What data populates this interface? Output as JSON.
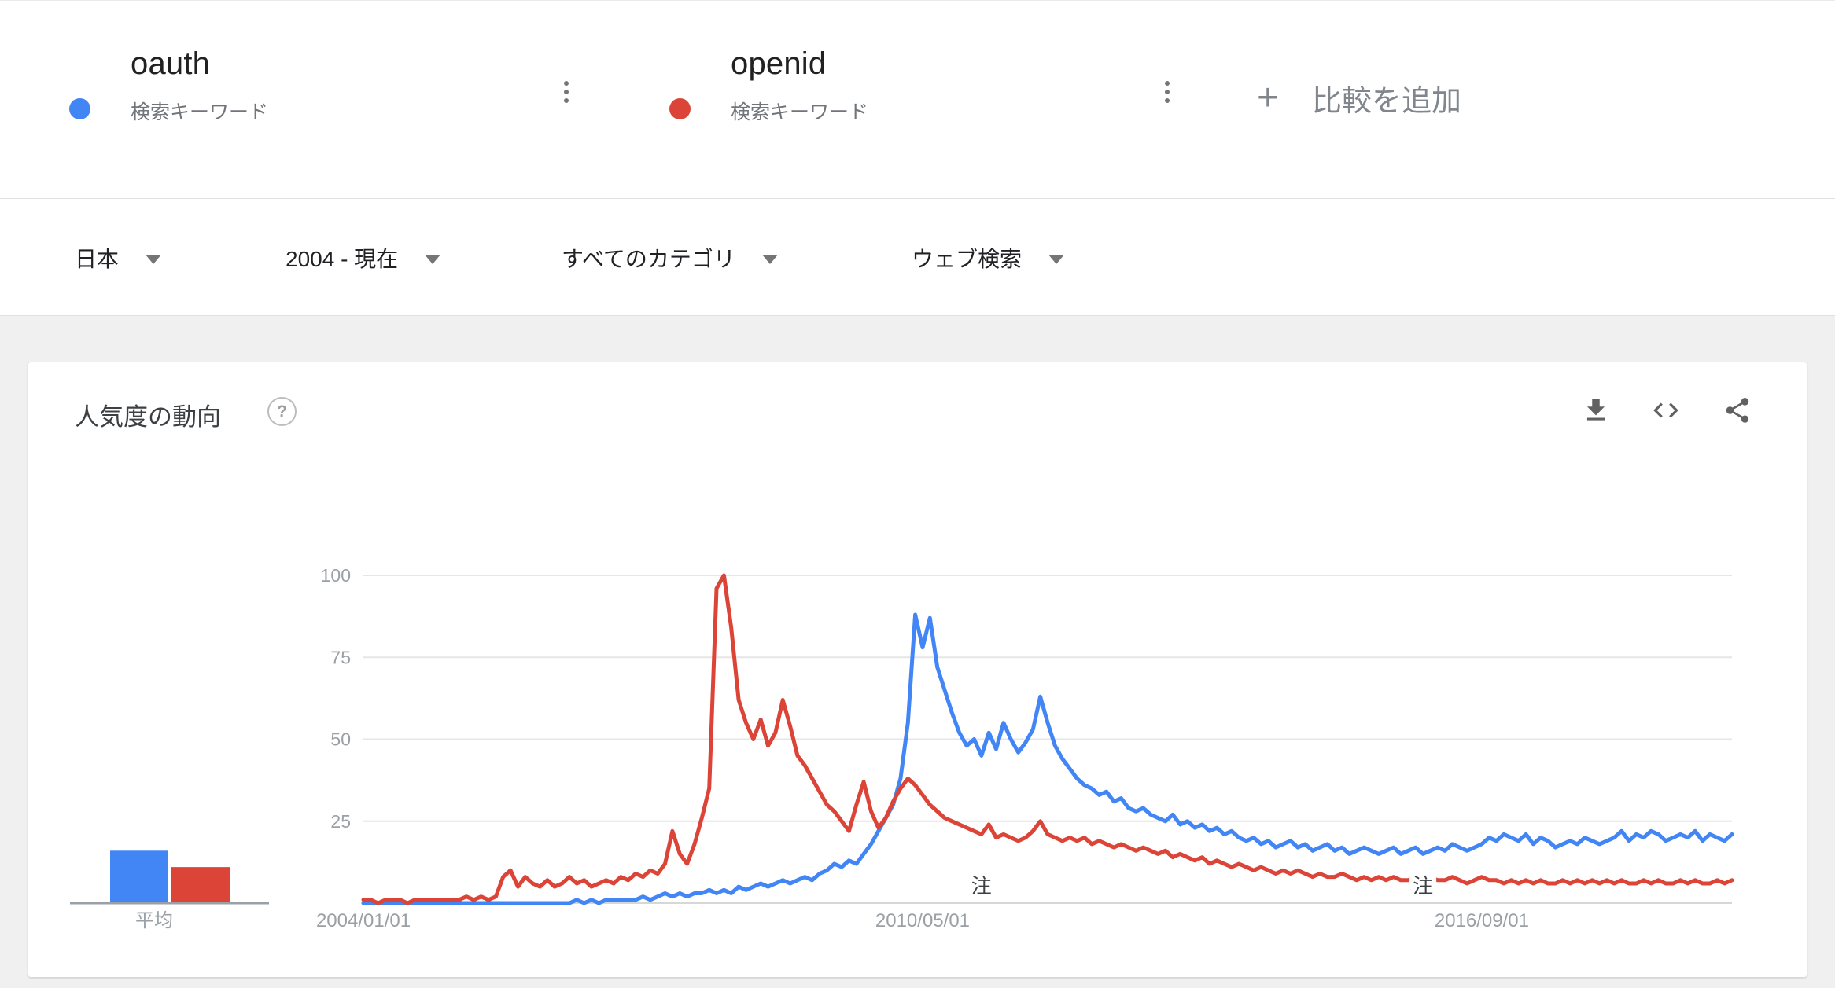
{
  "header": {
    "plus_icon": "+",
    "add_comparison": "比較を追加",
    "terms": [
      {
        "term": "oauth",
        "type_label": "検索キーワード",
        "color": "#4285f4"
      },
      {
        "term": "openid",
        "type_label": "検索キーワード",
        "color": "#db4437"
      }
    ]
  },
  "filters": {
    "geo": "日本",
    "time": "2004 - 現在",
    "category": "すべてのカテゴリ",
    "search_type": "ウェブ検索"
  },
  "chart_card": {
    "title": "人気度の動向",
    "help_glyph": "?"
  },
  "chart_data": {
    "type": "line",
    "title": "人気度の動向",
    "x_start": "2004-01",
    "x_end": "2019-07",
    "x_tick_labels": [
      "2004/01/01",
      "2010/05/01",
      "2016/09/01"
    ],
    "x_tick_month_indices": [
      0,
      76,
      152
    ],
    "y_ticks": [
      25,
      50,
      75,
      100
    ],
    "ylim": [
      0,
      100
    ],
    "grid": true,
    "averages_label": "平均",
    "annotations": [
      {
        "label": "注",
        "month_index": 84
      },
      {
        "label": "注",
        "month_index": 144
      }
    ],
    "series": [
      {
        "name": "oauth",
        "color": "#4285f4",
        "average": 16,
        "values": [
          0,
          0,
          0,
          0,
          0,
          0,
          0,
          0,
          0,
          0,
          0,
          0,
          0,
          0,
          0,
          0,
          0,
          0,
          0,
          0,
          0,
          0,
          0,
          0,
          0,
          0,
          0,
          0,
          0,
          1,
          0,
          1,
          0,
          1,
          1,
          1,
          1,
          1,
          2,
          1,
          2,
          3,
          2,
          3,
          2,
          3,
          3,
          4,
          3,
          4,
          3,
          5,
          4,
          5,
          6,
          5,
          6,
          7,
          6,
          7,
          8,
          7,
          9,
          10,
          12,
          11,
          13,
          12,
          15,
          18,
          22,
          26,
          30,
          38,
          55,
          88,
          78,
          87,
          72,
          65,
          58,
          52,
          48,
          50,
          45,
          52,
          47,
          55,
          50,
          46,
          49,
          53,
          63,
          55,
          48,
          44,
          41,
          38,
          36,
          35,
          33,
          34,
          31,
          32,
          29,
          28,
          29,
          27,
          26,
          25,
          27,
          24,
          25,
          23,
          24,
          22,
          23,
          21,
          22,
          20,
          19,
          20,
          18,
          19,
          17,
          18,
          19,
          17,
          18,
          16,
          17,
          18,
          16,
          17,
          15,
          16,
          17,
          16,
          15,
          16,
          17,
          15,
          16,
          17,
          15,
          16,
          17,
          16,
          18,
          17,
          16,
          17,
          18,
          20,
          19,
          21,
          20,
          19,
          21,
          18,
          20,
          19,
          17,
          18,
          19,
          18,
          20,
          19,
          18,
          19,
          20,
          22,
          19,
          21,
          20,
          22,
          21,
          19,
          20,
          21,
          20,
          22,
          19,
          21,
          20,
          19,
          21
        ]
      },
      {
        "name": "openid",
        "color": "#db4437",
        "average": 11,
        "values": [
          1,
          1,
          0,
          1,
          1,
          1,
          0,
          1,
          1,
          1,
          1,
          1,
          1,
          1,
          2,
          1,
          2,
          1,
          2,
          8,
          10,
          5,
          8,
          6,
          5,
          7,
          5,
          6,
          8,
          6,
          7,
          5,
          6,
          7,
          6,
          8,
          7,
          9,
          8,
          10,
          9,
          12,
          22,
          15,
          12,
          18,
          26,
          35,
          96,
          100,
          84,
          62,
          55,
          50,
          56,
          48,
          52,
          62,
          54,
          45,
          42,
          38,
          34,
          30,
          28,
          25,
          22,
          30,
          37,
          28,
          23,
          26,
          31,
          35,
          38,
          36,
          33,
          30,
          28,
          26,
          25,
          24,
          23,
          22,
          21,
          24,
          20,
          21,
          20,
          19,
          20,
          22,
          25,
          21,
          20,
          19,
          20,
          19,
          20,
          18,
          19,
          18,
          17,
          18,
          17,
          16,
          17,
          16,
          15,
          16,
          14,
          15,
          14,
          13,
          14,
          12,
          13,
          12,
          11,
          12,
          11,
          10,
          11,
          10,
          9,
          10,
          9,
          10,
          9,
          8,
          9,
          8,
          8,
          9,
          8,
          7,
          8,
          7,
          8,
          7,
          8,
          7,
          7,
          8,
          7,
          8,
          7,
          7,
          8,
          7,
          6,
          7,
          8,
          7,
          7,
          6,
          7,
          6,
          7,
          6,
          7,
          6,
          6,
          7,
          6,
          7,
          6,
          7,
          6,
          7,
          6,
          7,
          6,
          6,
          7,
          6,
          7,
          6,
          6,
          7,
          6,
          7,
          6,
          6,
          7,
          6,
          7
        ]
      }
    ]
  }
}
